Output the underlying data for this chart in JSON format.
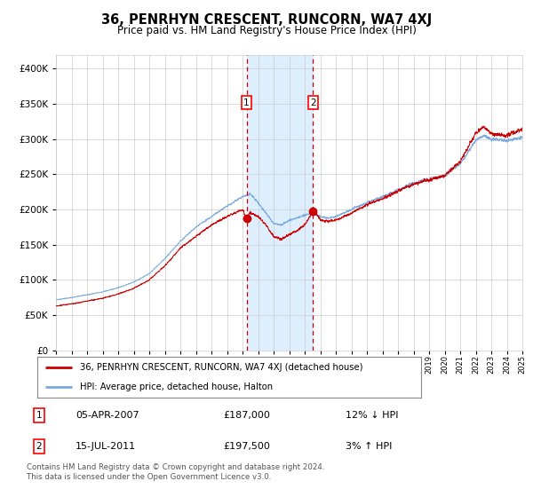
{
  "title": "36, PENRHYN CRESCENT, RUNCORN, WA7 4XJ",
  "subtitle": "Price paid vs. HM Land Registry's House Price Index (HPI)",
  "legend_line1": "36, PENRHYN CRESCENT, RUNCORN, WA7 4XJ (detached house)",
  "legend_line2": "HPI: Average price, detached house, Halton",
  "transaction1_date": "05-APR-2007",
  "transaction1_price": 187000,
  "transaction1_hpi": "12% ↓ HPI",
  "transaction2_date": "15-JUL-2011",
  "transaction2_price": 197500,
  "transaction2_hpi": "3% ↑ HPI",
  "footer": "Contains HM Land Registry data © Crown copyright and database right 2024.\nThis data is licensed under the Open Government Licence v3.0.",
  "hpi_color": "#7aaadd",
  "price_color": "#cc0000",
  "highlight_color": "#ddeeff",
  "dashed_color": "#cc0000",
  "background_color": "#ffffff",
  "grid_color": "#cccccc",
  "ylim": [
    0,
    420000
  ],
  "yticks": [
    0,
    50000,
    100000,
    150000,
    200000,
    250000,
    300000,
    350000,
    400000
  ],
  "x_start_year": 1995,
  "x_end_year": 2025,
  "transaction1_x": 2007.26,
  "transaction2_x": 2011.54
}
